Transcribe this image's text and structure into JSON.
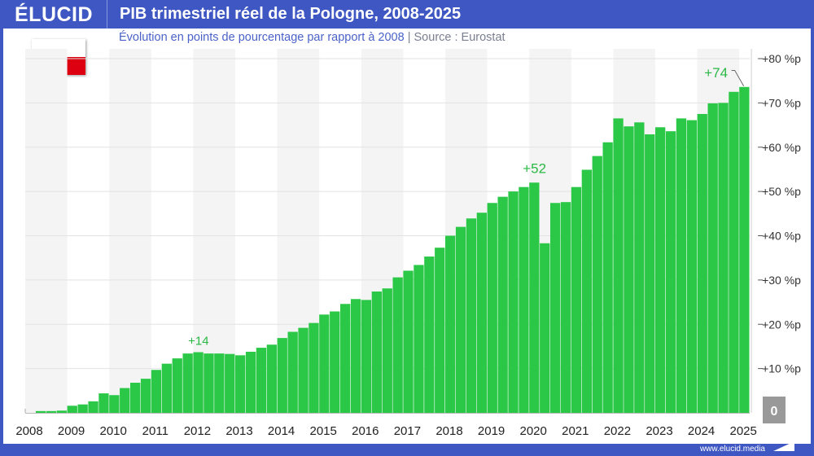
{
  "header": {
    "logo": "ÉLUCID",
    "title": "PIB trimestriel réel de la Pologne, 2008-2025"
  },
  "subtitle": {
    "text": "Évolution en points de pourcentage par rapport à 2008",
    "separator": "|",
    "source": "Source : Eurostat"
  },
  "flag": {
    "country": "Pologne",
    "colors": [
      "#ffffff",
      "#dc0010"
    ]
  },
  "footer": {
    "url": "www.elucid.media"
  },
  "colors": {
    "bar": "#2ac846",
    "annotation": "#2ab845",
    "header": "#3f57c3",
    "band": "#f4f4f4"
  },
  "chart_data": {
    "type": "bar",
    "title": "PIB trimestriel réel de la Pologne, 2008-2025",
    "subtitle": "Évolution en points de pourcentage par rapport à 2008",
    "x_start": "2008-T1",
    "frequency": "quarterly",
    "x_tick_labels": [
      "2008",
      "2009",
      "2010",
      "2011",
      "2012",
      "2013",
      "2014",
      "2015",
      "2016",
      "2017",
      "2018",
      "2019",
      "2020",
      "2021",
      "2022",
      "2023",
      "2024",
      "2025"
    ],
    "y_tick_labels": [
      "0",
      "+10 %p",
      "+20 %p",
      "+30 %p",
      "+40 %p",
      "+50 %p",
      "+60 %p",
      "+70 %p",
      "+80 %p"
    ],
    "ylim": [
      0,
      80
    ],
    "grid": true,
    "values": [
      0,
      0.4,
      0.4,
      0.5,
      1.6,
      1.9,
      2.6,
      4.4,
      4.0,
      5.6,
      6.8,
      7.7,
      9.7,
      11.1,
      12.3,
      13.4,
      13.7,
      13.4,
      13.4,
      13.3,
      13.0,
      13.8,
      14.7,
      15.4,
      16.9,
      18.3,
      19.2,
      20.3,
      22.2,
      22.9,
      24.6,
      25.7,
      25.5,
      27.4,
      28.1,
      30.6,
      32.1,
      33.4,
      35.3,
      37.3,
      40.0,
      42.0,
      43.9,
      45.2,
      47.4,
      48.8,
      50.0,
      51.0,
      52.0,
      38.3,
      47.4,
      47.6,
      51.0,
      54.9,
      58.0,
      61.1,
      66.5,
      64.7,
      65.6,
      62.9,
      64.5,
      63.6,
      66.5,
      66.1,
      67.5,
      69.9,
      70.0,
      72.5,
      73.6
    ],
    "annotations": [
      {
        "index": 16,
        "text": "+14"
      },
      {
        "index": 48,
        "text": "+52"
      },
      {
        "index": 68,
        "text": "+74"
      }
    ]
  }
}
